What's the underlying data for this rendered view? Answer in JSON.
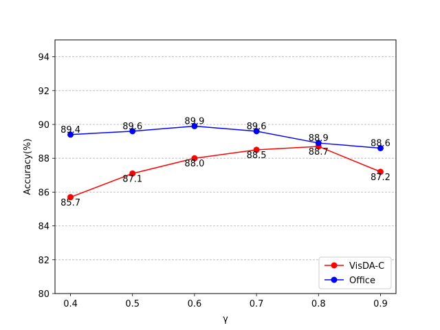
{
  "chart_data": {
    "type": "line",
    "title": "",
    "xlabel": "γ",
    "ylabel": "Accuracy(%)",
    "x": [
      0.4,
      0.5,
      0.6,
      0.7,
      0.8,
      0.9
    ],
    "x_tick_labels": [
      "0.4",
      "0.5",
      "0.6",
      "0.7",
      "0.8",
      "0.9"
    ],
    "y_ticks": [
      80,
      82,
      84,
      86,
      88,
      90,
      92,
      94
    ],
    "y_tick_labels": [
      "80",
      "82",
      "84",
      "86",
      "88",
      "90",
      "92",
      "94"
    ],
    "xlim": [
      0.375,
      0.925
    ],
    "ylim": [
      80,
      95
    ],
    "grid": "y-dashed",
    "legend_position": "lower-right",
    "series": [
      {
        "name": "VisDA-C",
        "color": "#ff0000",
        "values": [
          85.7,
          87.1,
          88.0,
          88.5,
          88.7,
          87.2
        ],
        "labels": [
          "85.7",
          "87.1",
          "88.0",
          "88.5",
          "88.7",
          "87.2"
        ],
        "label_position": "below"
      },
      {
        "name": "Office",
        "color": "#0000ff",
        "values": [
          89.4,
          89.6,
          89.9,
          89.6,
          88.9,
          88.6
        ],
        "labels": [
          "89.4",
          "89.6",
          "89.9",
          "89.6",
          "88.9",
          "88.6"
        ],
        "label_position": "above"
      }
    ]
  }
}
